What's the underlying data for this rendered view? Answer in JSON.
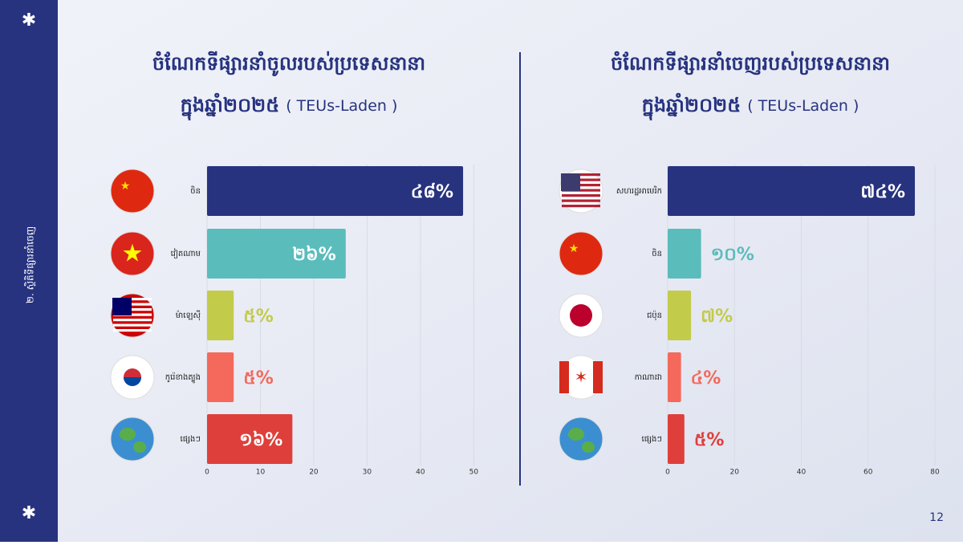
{
  "sidebar_label": "២. ស្ថិតិទីផ្សារនាំចេញ",
  "page_number": "12",
  "chart_data": [
    {
      "type": "bar",
      "orientation": "horizontal",
      "title": "ចំណែកទីផ្សារនាំចូលរបស់ប្រទេសនានា",
      "subtitle": "ក្នុងឆ្នាំ២០២៥",
      "unit_note": "( TEUs-Laden )",
      "categories": [
        "ចិន",
        "វៀតណាម",
        "ម៉ាឡេស៊ី",
        "កូរ៉េខាងត្បូង",
        "ផ្សេងៗ"
      ],
      "values": [
        48,
        26,
        5,
        5,
        16
      ],
      "value_labels": [
        "៤៨%",
        "២៦%",
        "៥%",
        "៥%",
        "១៦%"
      ],
      "colors": [
        "#27337f",
        "#5bbcbc",
        "#c3cb4a",
        "#f4695b",
        "#df3f3b"
      ],
      "xlim": [
        0,
        51
      ],
      "xticks": [
        0,
        10,
        20,
        30,
        40,
        50
      ],
      "grid": true
    },
    {
      "type": "bar",
      "orientation": "horizontal",
      "title": "ចំណែកទីផ្សារនាំចេញរបស់ប្រទេសនានា",
      "subtitle": "ក្នុងឆ្នាំ២០២៥",
      "unit_note": "( TEUs-Laden )",
      "categories": [
        "សហរដ្ឋអាមេរិក",
        "ចិន",
        "ជប៉ុន",
        "កាណាដា",
        "ផ្សេងៗ"
      ],
      "values": [
        74,
        10,
        7,
        4,
        5
      ],
      "value_labels": [
        "៧៤%",
        "១០%",
        "៧%",
        "៤%",
        "៥%"
      ],
      "colors": [
        "#27337f",
        "#5bbcbc",
        "#c3cb4a",
        "#f4695b",
        "#df3f3b"
      ],
      "xlim": [
        0,
        80
      ],
      "xticks": [
        0,
        20,
        40,
        60,
        80
      ],
      "grid": true
    }
  ]
}
